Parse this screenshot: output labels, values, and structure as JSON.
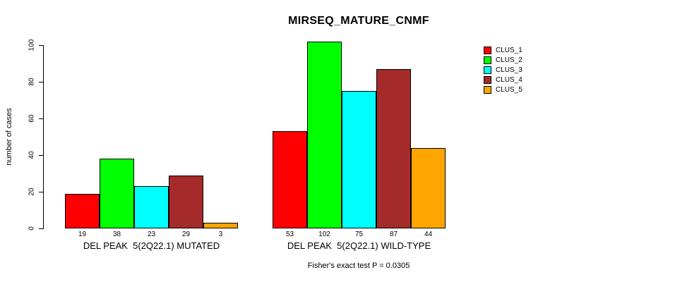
{
  "title": "MIRSEQ_MATURE_CNMF",
  "y_axis": {
    "label": "number of cases",
    "ticks": [
      "0",
      "20",
      "40",
      "60",
      "80",
      "100"
    ]
  },
  "footer": "Fisher's exact test P = 0.0305",
  "legend": {
    "items": [
      {
        "label": "CLUS_1",
        "color": "#FF0000"
      },
      {
        "label": "CLUS_2",
        "color": "#00FF00"
      },
      {
        "label": "CLUS_3",
        "color": "#00FFFF"
      },
      {
        "label": "CLUS_4",
        "color": "#A52A2A"
      },
      {
        "label": "CLUS_5",
        "color": "#FFA500"
      }
    ]
  },
  "chart_data": {
    "type": "bar",
    "title": "MIRSEQ_MATURE_CNMF",
    "ylabel": "number of cases",
    "ylim": [
      0,
      105
    ],
    "yticks": [
      0,
      20,
      40,
      60,
      80,
      100
    ],
    "grid": false,
    "legend_position": "top-right",
    "categories": [
      "DEL PEAK  5(2Q22.1) MUTATED",
      "DEL PEAK  5(2Q22.1) WILD-TYPE"
    ],
    "series": [
      {
        "name": "CLUS_1",
        "color": "#FF0000",
        "values": [
          19,
          53
        ]
      },
      {
        "name": "CLUS_2",
        "color": "#00FF00",
        "values": [
          38,
          102
        ]
      },
      {
        "name": "CLUS_3",
        "color": "#00FFFF",
        "values": [
          23,
          75
        ]
      },
      {
        "name": "CLUS_4",
        "color": "#A52A2A",
        "values": [
          29,
          87
        ]
      },
      {
        "name": "CLUS_5",
        "color": "#FFA500",
        "values": [
          3,
          44
        ]
      }
    ],
    "bar_value_labels": [
      [
        19,
        38,
        23,
        29,
        3
      ],
      [
        53,
        102,
        75,
        87,
        44
      ]
    ],
    "annotation": "Fisher's exact test P = 0.0305"
  }
}
